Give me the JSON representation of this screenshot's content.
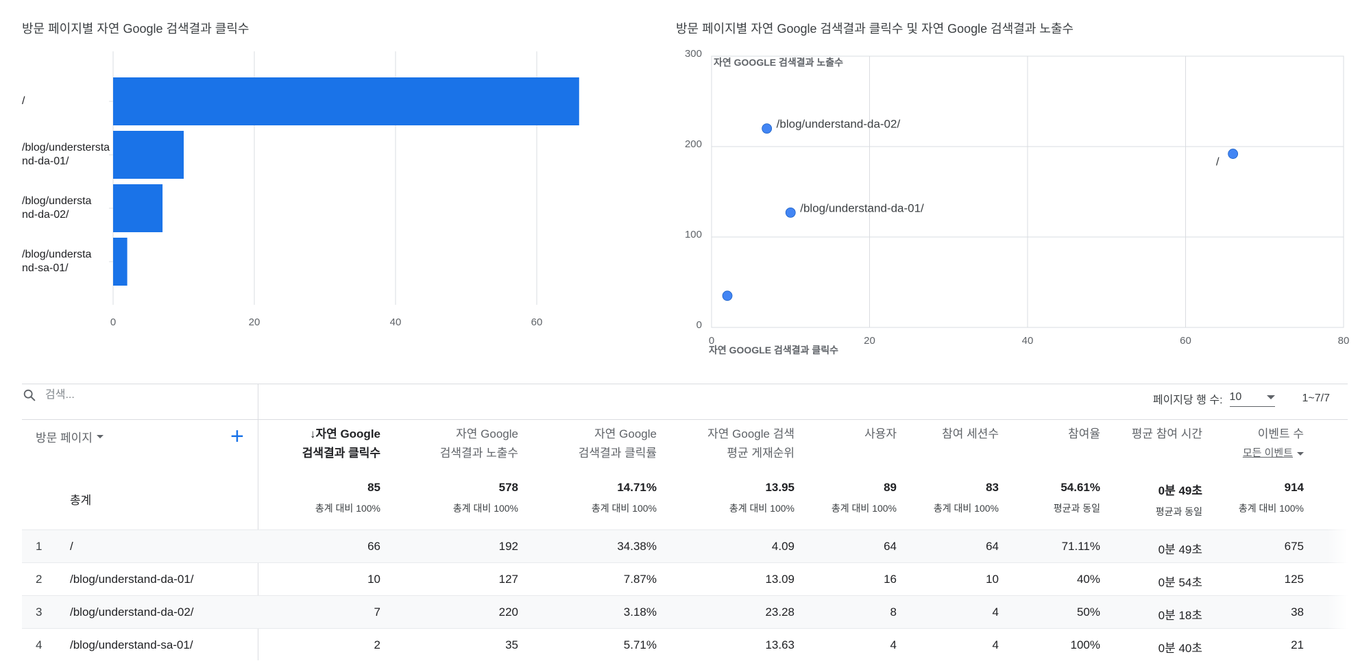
{
  "bar_chart": {
    "title": "방문 페이지별 자연 Google 검색결과 클릭수",
    "chart_data": {
      "type": "bar",
      "orientation": "horizontal",
      "categories": [
        "/",
        "/blog/understand-da-01/",
        "/blog/understand-da-02/",
        "/blog/understand-sa-01/"
      ],
      "category_labels": [
        [
          "/"
        ],
        [
          "/blog/understersta",
          "nd-da-01/"
        ],
        [
          "/blog/understa",
          "nd-da-02/"
        ],
        [
          "/blog/understa",
          "nd-sa-01/"
        ]
      ],
      "values": [
        66,
        10,
        7,
        2
      ],
      "xlim": [
        0,
        66
      ],
      "xticks": [
        0,
        20,
        40,
        60
      ],
      "color": "#1a73e8",
      "grid": true
    }
  },
  "scatter_chart": {
    "title": "방문 페이지별 자연 Google 검색결과 클릭수 및 자연 Google 검색결과 노출수",
    "chart_data": {
      "type": "scatter",
      "xlabel": "자연 GOOGLE 검색결과 클릭수",
      "ylabel": "자연 GOOGLE 검색결과 노출수",
      "xlim": [
        0,
        80
      ],
      "ylim": [
        0,
        300
      ],
      "xticks": [
        0,
        20,
        40,
        60,
        80
      ],
      "yticks": [
        0,
        100,
        200,
        300
      ],
      "points": [
        {
          "x": 66,
          "y": 192,
          "label": "/"
        },
        {
          "x": 10,
          "y": 127,
          "label": "/blog/understand-da-01/"
        },
        {
          "x": 7,
          "y": 220,
          "label": "/blog/understand-da-02/"
        },
        {
          "x": 2,
          "y": 35,
          "label": ""
        }
      ],
      "color": "#4285f4",
      "grid": true
    }
  },
  "table": {
    "search_placeholder": "검색...",
    "rows_per_page_label": "페이지당 행 수:",
    "rows_per_page_value": "10",
    "range_label": "1~7/7",
    "dimension_header": "방문 페이지",
    "add_dimension_label": "+",
    "columns": [
      {
        "line1": "↓자연 Google",
        "line2": "검색결과 클릭수"
      },
      {
        "line1": "자연 Google",
        "line2": "검색결과 노출수"
      },
      {
        "line1": "자연 Google",
        "line2": "검색결과 클릭률"
      },
      {
        "line1": "자연 Google 검색",
        "line2": "평균 게재순위"
      },
      {
        "line1": "사용자",
        "line2": ""
      },
      {
        "line1": "참여 세션수",
        "line2": ""
      },
      {
        "line1": "참여율",
        "line2": ""
      },
      {
        "line1": "평균 참여 시간",
        "line2": ""
      },
      {
        "line1": "이벤트 수",
        "line2": "",
        "sub": "모든 이벤트"
      }
    ],
    "total_label": "총계",
    "totals": [
      {
        "value": "85",
        "sub": "총계 대비 100%"
      },
      {
        "value": "578",
        "sub": "총계 대비 100%"
      },
      {
        "value": "14.71%",
        "sub": "총계 대비 100%"
      },
      {
        "value": "13.95",
        "sub": "총계 대비 100%"
      },
      {
        "value": "89",
        "sub": "총계 대비 100%"
      },
      {
        "value": "83",
        "sub": "총계 대비 100%"
      },
      {
        "value": "54.61%",
        "sub": "평균과 동일"
      },
      {
        "value": "0분 49초",
        "sub": "평균과 동일"
      },
      {
        "value": "914",
        "sub": "총계 대비 100%"
      }
    ],
    "rows": [
      {
        "n": "1",
        "page": "/",
        "cells": [
          "66",
          "192",
          "34.38%",
          "4.09",
          "64",
          "64",
          "71.11%",
          "0분 49초",
          "675"
        ]
      },
      {
        "n": "2",
        "page": "/blog/understand-da-01/",
        "cells": [
          "10",
          "127",
          "7.87%",
          "13.09",
          "16",
          "10",
          "40%",
          "0분 54초",
          "125"
        ]
      },
      {
        "n": "3",
        "page": "/blog/understand-da-02/",
        "cells": [
          "7",
          "220",
          "3.18%",
          "23.28",
          "8",
          "4",
          "50%",
          "0분 18초",
          "38"
        ]
      },
      {
        "n": "4",
        "page": "/blog/understand-sa-01/",
        "cells": [
          "2",
          "35",
          "5.71%",
          "13.63",
          "4",
          "4",
          "100%",
          "0분 40초",
          "21"
        ]
      }
    ]
  }
}
